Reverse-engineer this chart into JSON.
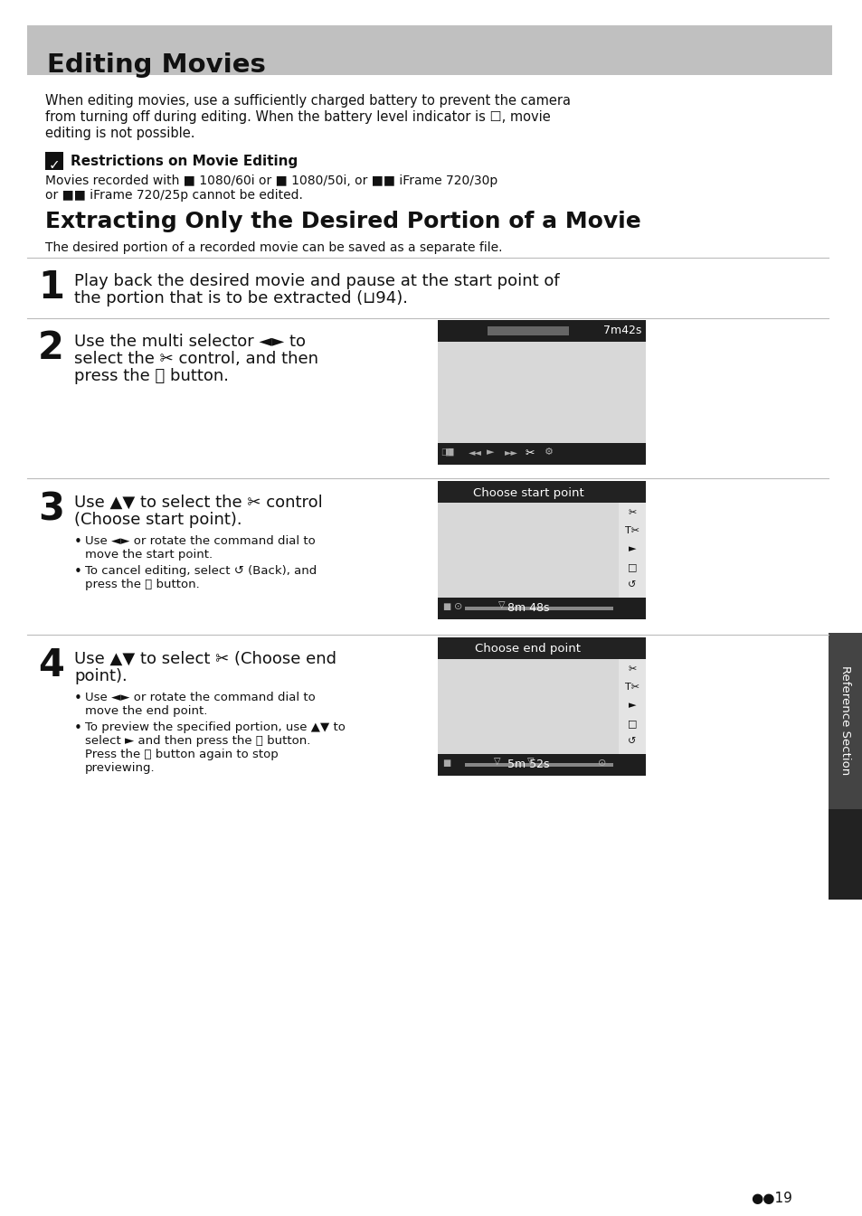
{
  "page_bg": "#ffffff",
  "title_bg": "#c0c0c0",
  "title_text": "Editing Movies",
  "section_title": "Extracting Only the Desired Portion of a Movie",
  "note_header": "Restrictions on Movie Editing",
  "intro_lines": [
    "When editing movies, use a sufficiently charged battery to prevent the camera",
    "from turning off during editing. When the battery level indicator is ☐, movie",
    "editing is not possible."
  ],
  "note_line1": "Movies recorded with ■ 1080/60i or ■ 1080/50i, or ■■ iFrame 720/30p",
  "note_line2": "or ■■ iFrame 720/25p cannot be edited.",
  "section_desc": "The desired portion of a recorded movie can be saved as a separate file.",
  "step1_lines": [
    "Play back the desired movie and pause at the start point of",
    "the portion that is to be extracted (⊔94)."
  ],
  "step2_lines": [
    "Use the multi selector ◄► to",
    "select the ✂ control, and then",
    "press the ⒪ button."
  ],
  "step2_time": "7m42s",
  "step3_lines": [
    "Use ▲▼ to select the ✂ control",
    "(Choose start point)."
  ],
  "step3_bullet1a": "Use ◄► or rotate the command dial to",
  "step3_bullet1b": "move the start point.",
  "step3_bullet2a": "To cancel editing, select ↺ (Back), and",
  "step3_bullet2b": "press the ⒪ button.",
  "step3_title": "Choose start point",
  "step3_time": "8m 48s",
  "step4_lines": [
    "Use ▲▼ to select ✂ (Choose end",
    "point)."
  ],
  "step4_bullet1a": "Use ◄► or rotate the command dial to",
  "step4_bullet1b": "move the end point.",
  "step4_bullet2a": "To preview the specified portion, use ▲▼ to",
  "step4_bullet2b": "select ► and then press the ⒪ button.",
  "step4_bullet2c": "Press the ⒪ button again to stop",
  "step4_bullet2d": "previewing.",
  "step4_title": "Choose end point",
  "step4_time": "5m 52s",
  "ref_text": "Reference Section",
  "page_num": "19",
  "screen_dark": "#1e1e1e",
  "screen_gray": "#d8d8d8",
  "screen_sidebar": "#e4e4e4",
  "screen_header": "#222222",
  "divider_color": "#bbbbbb",
  "sidebar_dark": "#3a3a3a"
}
